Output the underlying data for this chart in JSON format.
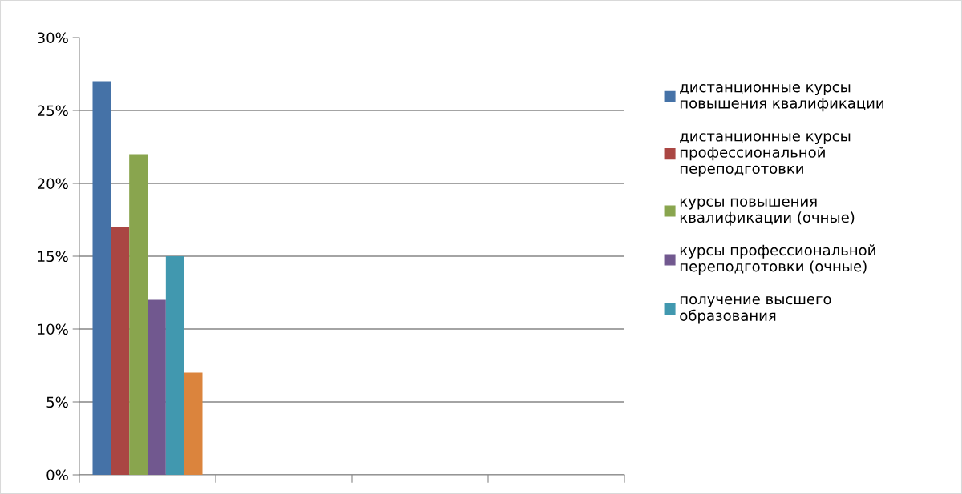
{
  "chart_data": {
    "type": "bar",
    "categories": [
      null,
      null,
      null,
      null
    ],
    "series": [
      {
        "name": "дистанционные курсы\nповышения квалификации",
        "color": "#4572a7",
        "values": [
          27,
          null,
          null,
          null
        ]
      },
      {
        "name": "дистанционные курсы\nпрофессиональной\nпереподготовки",
        "color": "#aa4643",
        "values": [
          17,
          null,
          null,
          null
        ]
      },
      {
        "name": "курсы повышения\nквалификации (очные)",
        "color": "#89a54e",
        "values": [
          22,
          null,
          null,
          null
        ]
      },
      {
        "name": "курсы профессиональной\nпереподготовки (очные)",
        "color": "#71588f",
        "values": [
          12,
          null,
          null,
          null
        ]
      },
      {
        "name": "получение высшего\nобразования",
        "color": "#4198af",
        "values": [
          15,
          null,
          null,
          null
        ]
      },
      {
        "color": "#db843d",
        "values": [
          7,
          null,
          null,
          null
        ]
      }
    ],
    "ylim": [
      0,
      30
    ],
    "yticks": [
      {
        "value": 0,
        "label": "0%"
      },
      {
        "value": 5,
        "label": "5%"
      },
      {
        "value": 10,
        "label": "10%"
      },
      {
        "value": 15,
        "label": "15%"
      },
      {
        "value": 20,
        "label": "20%"
      },
      {
        "value": 25,
        "label": "25%"
      },
      {
        "value": 30,
        "label": "30%"
      }
    ],
    "grid": "y",
    "legend": "right",
    "tick_labels": "y"
  }
}
